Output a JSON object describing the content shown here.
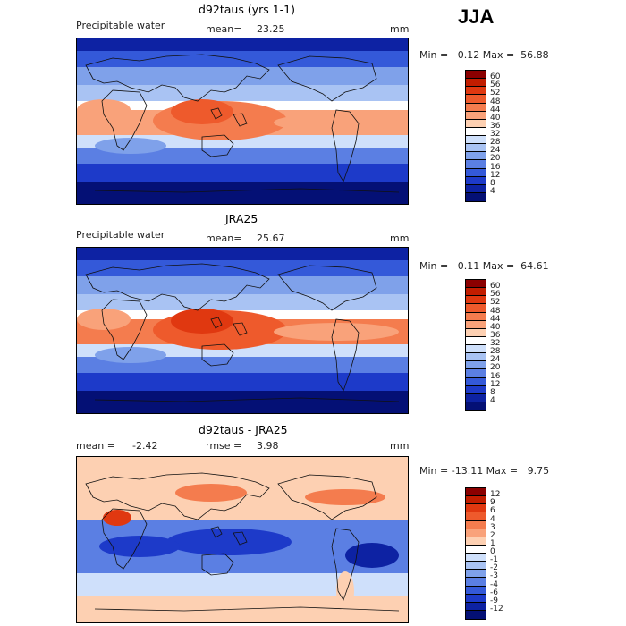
{
  "season": "JJA",
  "panels": [
    {
      "title": "d92taus (yrs 1-1)",
      "left_label": "Precipitable water",
      "stat_label": "mean=",
      "stat_value": "23.25",
      "units": "mm",
      "minmax": "Min =   0.12 Max =  56.88",
      "colorbar_labels": [
        "60",
        "56",
        "52",
        "48",
        "44",
        "40",
        "36",
        "32",
        "28",
        "24",
        "20",
        "16",
        "12",
        "8",
        "4"
      ],
      "colorbar_colors": [
        "#8b0000",
        "#c21d00",
        "#e03810",
        "#ee5a2c",
        "#f47c4e",
        "#f9a27a",
        "#fdd0b2",
        "#ffffff",
        "#cfe0fb",
        "#a9c3f3",
        "#7fa1ea",
        "#5b7fe3",
        "#3459d9",
        "#1d3ac9",
        "#0d22a3",
        "#041075"
      ]
    },
    {
      "title": "JRA25",
      "left_label": "Precipitable water",
      "stat_label": "mean=",
      "stat_value": "25.67",
      "units": "mm",
      "minmax": "Min =   0.11 Max =  64.61",
      "colorbar_labels": [
        "60",
        "56",
        "52",
        "48",
        "44",
        "40",
        "36",
        "32",
        "28",
        "24",
        "20",
        "16",
        "12",
        "8",
        "4"
      ],
      "colorbar_colors": [
        "#8b0000",
        "#c21d00",
        "#e03810",
        "#ee5a2c",
        "#f47c4e",
        "#f9a27a",
        "#fdd0b2",
        "#ffffff",
        "#cfe0fb",
        "#a9c3f3",
        "#7fa1ea",
        "#5b7fe3",
        "#3459d9",
        "#1d3ac9",
        "#0d22a3",
        "#041075"
      ]
    },
    {
      "title": "d92taus - JRA25",
      "left_label": "mean =",
      "left_value": "-2.42",
      "stat_label": "rmse =",
      "stat_value": "3.98",
      "units": "mm",
      "minmax": "Min = -13.11 Max =   9.75",
      "colorbar_labels": [
        "12",
        "9",
        "6",
        "4",
        "3",
        "2",
        "1",
        "0",
        "-1",
        "-2",
        "-3",
        "-4",
        "-6",
        "-9",
        "-12"
      ],
      "colorbar_colors": [
        "#8b0000",
        "#c21d00",
        "#e03810",
        "#ee5a2c",
        "#f47c4e",
        "#f9a27a",
        "#fdd0b2",
        "#ffffff",
        "#cfe0fb",
        "#a9c3f3",
        "#7fa1ea",
        "#5b7fe3",
        "#3459d9",
        "#1d3ac9",
        "#0d22a3",
        "#041075"
      ]
    }
  ],
  "chart_data": [
    {
      "type": "heatmap",
      "title": "d92taus (yrs 1-1)",
      "field": "Precipitable water",
      "units": "mm",
      "mean": 23.25,
      "min": 0.12,
      "max": 56.88,
      "levels": [
        4,
        8,
        12,
        16,
        20,
        24,
        28,
        32,
        36,
        40,
        44,
        48,
        52,
        56,
        60
      ]
    },
    {
      "type": "heatmap",
      "title": "JRA25",
      "field": "Precipitable water",
      "units": "mm",
      "mean": 25.67,
      "min": 0.11,
      "max": 64.61,
      "levels": [
        4,
        8,
        12,
        16,
        20,
        24,
        28,
        32,
        36,
        40,
        44,
        48,
        52,
        56,
        60
      ]
    },
    {
      "type": "heatmap",
      "title": "d92taus - JRA25",
      "units": "mm",
      "mean": -2.42,
      "rmse": 3.98,
      "min": -13.11,
      "max": 9.75,
      "levels": [
        -12,
        -9,
        -6,
        -4,
        -3,
        -2,
        -1,
        0,
        1,
        2,
        3,
        4,
        6,
        9,
        12
      ]
    }
  ]
}
